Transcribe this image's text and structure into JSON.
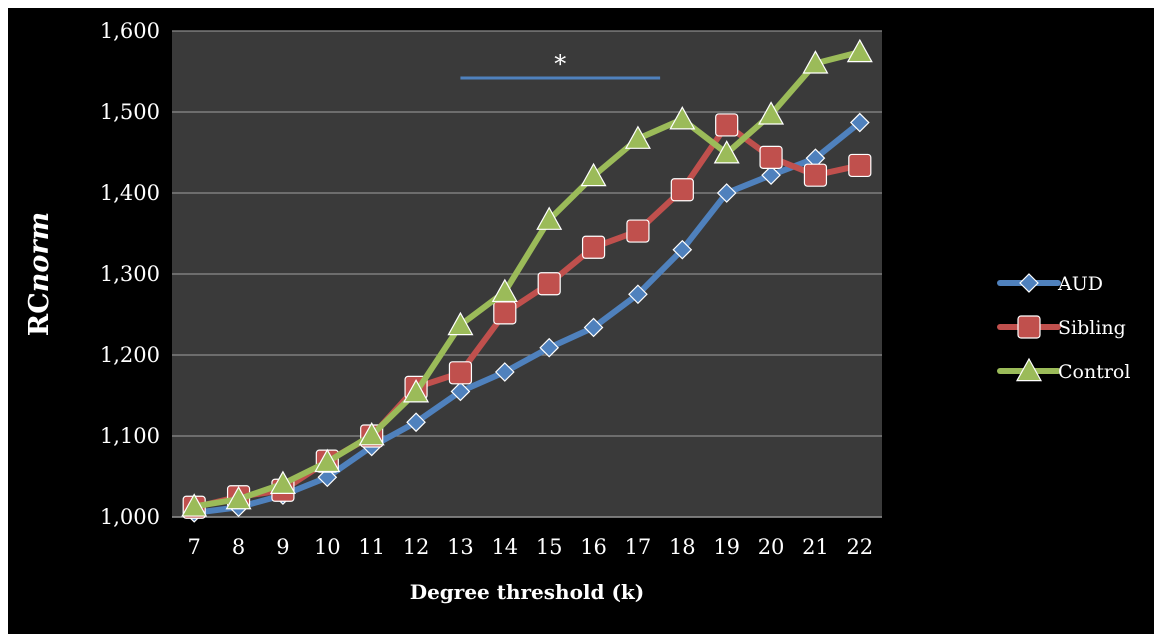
{
  "chart_data": {
    "type": "line",
    "title": "",
    "xlabel": "Degree threshold (k)",
    "ylabel": {
      "prefix": "RC",
      "italic": "norm"
    },
    "x": [
      7,
      8,
      9,
      10,
      11,
      12,
      13,
      14,
      15,
      16,
      17,
      18,
      19,
      20,
      21,
      22
    ],
    "ylim": [
      1.0,
      1.6
    ],
    "yticks": [
      1.0,
      1.1,
      1.2,
      1.3,
      1.4,
      1.5,
      1.6
    ],
    "ytick_labels": [
      "1,000",
      "1,100",
      "1,200",
      "1,300",
      "1,400",
      "1,500",
      "1,600"
    ],
    "grid": true,
    "legend_position": "right",
    "background_color": "#3a3a3a",
    "series": [
      {
        "name": "AUD",
        "color": "#4f81bd",
        "marker": "diamond",
        "values": [
          1.005,
          1.012,
          1.027,
          1.049,
          1.087,
          1.117,
          1.155,
          1.179,
          1.209,
          1.234,
          1.275,
          1.33,
          1.4,
          1.422,
          1.443,
          1.487
        ]
      },
      {
        "name": "Sibling",
        "color": "#c0504d",
        "marker": "square",
        "values": [
          1.012,
          1.025,
          1.033,
          1.069,
          1.1,
          1.16,
          1.178,
          1.252,
          1.288,
          1.333,
          1.353,
          1.404,
          1.484,
          1.444,
          1.422,
          1.434
        ]
      },
      {
        "name": "Control",
        "color": "#9bbb59",
        "marker": "triangle",
        "values": [
          1.013,
          1.022,
          1.041,
          1.068,
          1.101,
          1.154,
          1.237,
          1.278,
          1.367,
          1.421,
          1.467,
          1.491,
          1.449,
          1.497,
          1.56,
          1.574
        ]
      }
    ],
    "annotations": [
      {
        "text": "*",
        "type": "significance-bar",
        "x_start": 13,
        "x_end": 17.5,
        "y": 1.542,
        "color": "#4f81bd"
      }
    ]
  }
}
